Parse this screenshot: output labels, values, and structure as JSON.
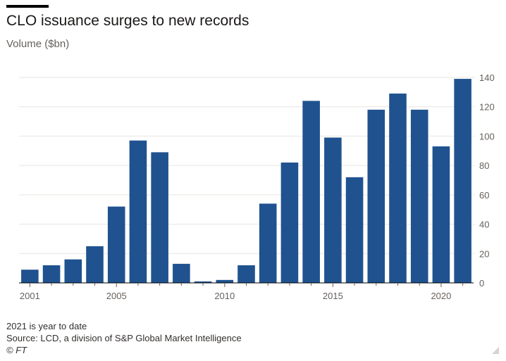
{
  "header": {
    "title": "CLO issuance surges to new records",
    "subtitle": "Volume ($bn)"
  },
  "footer": {
    "note": "2021 is year to date",
    "source": "Source: LCD, a division of S&P Global Market Intelligence",
    "credit": "© FT"
  },
  "colors": {
    "bar": "#1f528f",
    "grid": "#e9e5e1",
    "baseline": "#000000"
  },
  "chart_data": {
    "type": "bar",
    "title": "CLO issuance surges to new records",
    "ylabel": "Volume ($bn)",
    "xlabel": "",
    "categories": [
      "2001",
      "2002",
      "2003",
      "2004",
      "2005",
      "2006",
      "2007",
      "2008",
      "2009",
      "2010",
      "2011",
      "2012",
      "2013",
      "2014",
      "2015",
      "2016",
      "2017",
      "2018",
      "2019",
      "2020",
      "2021"
    ],
    "values": [
      9,
      12,
      16,
      25,
      52,
      97,
      89,
      13,
      1,
      2,
      12,
      54,
      82,
      124,
      99,
      72,
      118,
      129,
      118,
      93,
      139
    ],
    "x_tick_labels": [
      "2001",
      "2005",
      "2010",
      "2015",
      "2020"
    ],
    "y_ticks": [
      0,
      20,
      40,
      60,
      80,
      100,
      120,
      140
    ],
    "ylim": [
      0,
      140
    ],
    "y_axis_side": "right",
    "grid": true,
    "legend": "none"
  }
}
